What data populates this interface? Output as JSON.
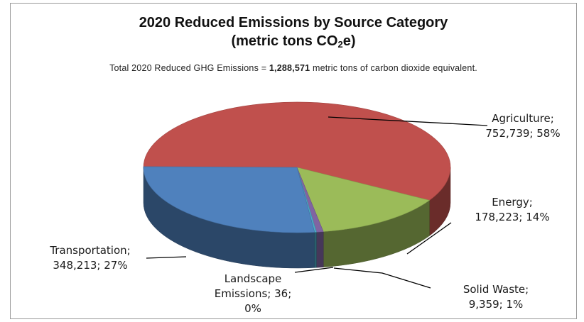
{
  "title_line1": "2020 Reduced Emissions by Source Category",
  "title_line2_prefix": "(metric tons CO",
  "title_line2_sub": "2",
  "title_line2_suffix": "e)",
  "subtitle": {
    "before": "Total 2020 Reduced GHG Emissions = ",
    "total": "1,288,571",
    "after": " metric tons of carbon dioxide equivalent."
  },
  "chart_data": {
    "type": "pie",
    "title": "2020 Reduced Emissions by Source Category (metric tons CO2e)",
    "subtitle": "Total 2020 Reduced GHG Emissions = 1,288,571 metric tons of carbon dioxide equivalent.",
    "total": 1288571,
    "three_d": true,
    "slices": [
      {
        "name": "Agriculture",
        "value": 752739,
        "percent": 58,
        "color": "#c0504d",
        "label_lines": [
          "Agriculture;",
          "752,739; 58%"
        ]
      },
      {
        "name": "Energy",
        "value": 178223,
        "percent": 14,
        "color": "#9bbb59",
        "label_lines": [
          "Energy;",
          "178,223; 14%"
        ]
      },
      {
        "name": "Solid Waste",
        "value": 9359,
        "percent": 1,
        "color": "#8064a2",
        "label_lines": [
          "Solid Waste;",
          "9,359; 1%"
        ]
      },
      {
        "name": "Landscape Emissions",
        "value": 36,
        "percent": 0,
        "color": "#4bacc6",
        "label_lines": [
          "Landscape",
          "Emissions; 36;",
          "0%"
        ]
      },
      {
        "name": "Transportation",
        "value": 348213,
        "percent": 27,
        "color": "#4f81bd",
        "label_lines": [
          "Transportation;",
          "348,213; 27%"
        ]
      }
    ]
  }
}
